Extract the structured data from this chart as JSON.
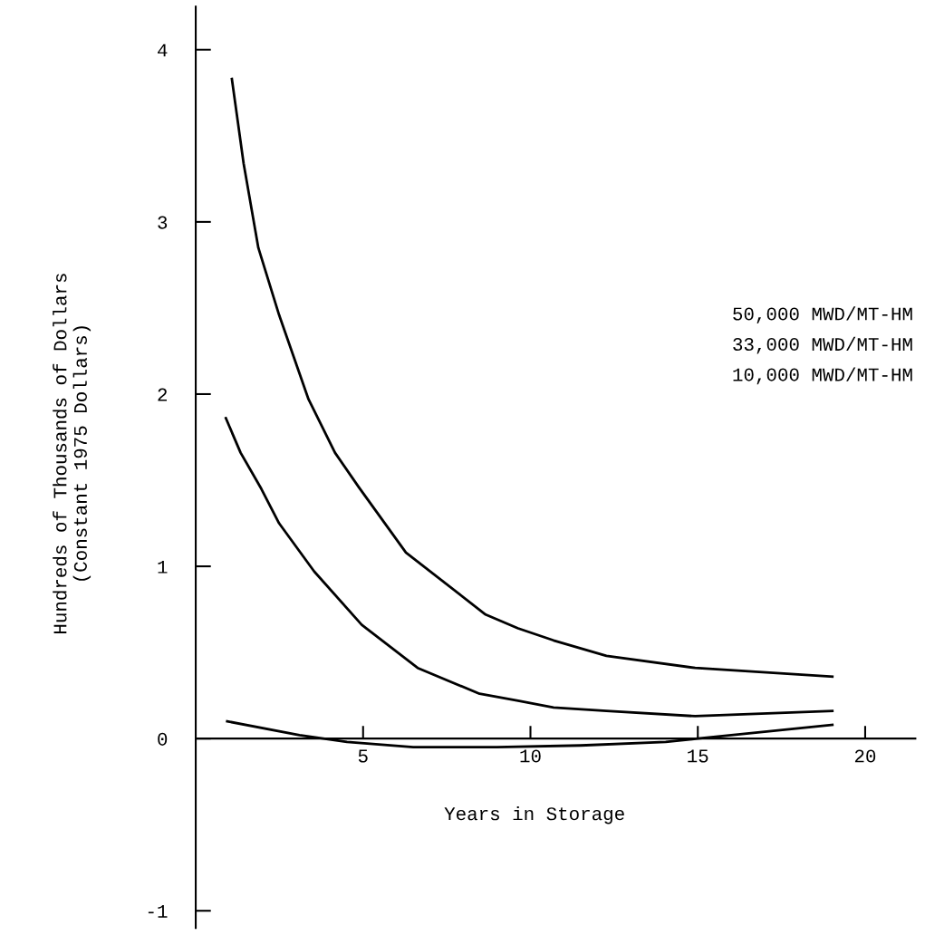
{
  "chart_data": {
    "type": "line",
    "xlabel": "Years in Storage",
    "ylabel": "Hundreds of Thousands of Dollars\n(Constant 1975 Dollars)",
    "xlim": [
      0,
      21.5
    ],
    "ylim": [
      -1.1,
      4.25
    ],
    "xticks": [
      5,
      10,
      15,
      20
    ],
    "yticks": [
      -1,
      0,
      1,
      2,
      3,
      4
    ],
    "grid": false,
    "marker": "none",
    "line_style": "solid",
    "annotations": [
      "50,000 MWD/MT-HM",
      "33,000 MWD/MT-HM",
      "10,000 MWD/MT-HM"
    ],
    "series": [
      {
        "color": "#000000",
        "x": [
          1.08,
          1.43,
          1.87,
          2.49,
          3.37,
          4.16,
          4.87,
          6.28,
          8.66,
          9.63,
          10.69,
          12.27,
          14.92,
          19.02
        ],
        "values": [
          3.83,
          3.34,
          2.85,
          2.46,
          1.97,
          1.66,
          1.46,
          1.08,
          0.72,
          0.64,
          0.57,
          0.48,
          0.41,
          0.36
        ]
      },
      {
        "color": "#000000",
        "x": [
          0.9,
          1.34,
          1.96,
          2.49,
          3.54,
          4.96,
          6.63,
          8.48,
          9.63,
          10.69,
          12.27,
          14.92,
          19.02
        ],
        "values": [
          1.86,
          1.66,
          1.45,
          1.25,
          0.97,
          0.66,
          0.41,
          0.26,
          0.22,
          0.18,
          0.16,
          0.13,
          0.16
        ]
      },
      {
        "color": "#000000",
        "x": [
          0.94,
          3.1,
          4.52,
          6.5,
          9.0,
          11.5,
          14.04,
          15.0,
          19.02
        ],
        "values": [
          0.1,
          0.02,
          -0.02,
          -0.05,
          -0.05,
          -0.04,
          -0.02,
          0.0,
          0.08
        ]
      }
    ]
  }
}
